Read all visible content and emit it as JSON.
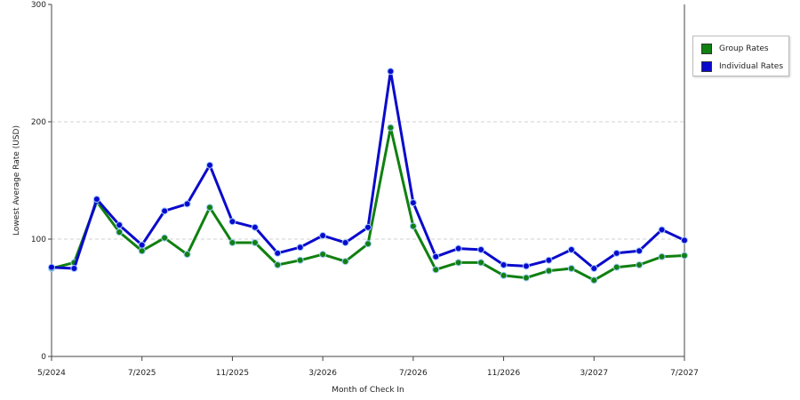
{
  "chart_data": {
    "type": "line",
    "ylabel": "Lowest Average Rate (USD)",
    "xlabel": "Month of Check In",
    "ylim": [
      0,
      300
    ],
    "yticks": [
      "0",
      "100",
      "200",
      "300"
    ],
    "grid": "horizontal dashed",
    "legend_placement": "right",
    "x": [
      "5/2024",
      "6/2024",
      "5/2025",
      "6/2025",
      "7/2025",
      "8/2025",
      "9/2025",
      "10/2025",
      "11/2025",
      "12/2025",
      "1/2026",
      "2/2026",
      "3/2026",
      "4/2026",
      "5/2026",
      "6/2026",
      "7/2026",
      "8/2026",
      "9/2026",
      "10/2026",
      "11/2026",
      "12/2026",
      "1/2027",
      "2/2027",
      "3/2027",
      "4/2027",
      "5/2027",
      "6/2027",
      "7/2027"
    ],
    "xtick_labels": [
      {
        "index": 0,
        "label": "5/2024"
      },
      {
        "index": 4,
        "label": "7/2025"
      },
      {
        "index": 8,
        "label": "11/2025"
      },
      {
        "index": 12,
        "label": "3/2026"
      },
      {
        "index": 16,
        "label": "7/2026"
      },
      {
        "index": 20,
        "label": "11/2026"
      },
      {
        "index": 24,
        "label": "3/2027"
      },
      {
        "index": 28,
        "label": "7/2027"
      }
    ],
    "series": [
      {
        "name": "Group Rates",
        "color": "#108010",
        "values": [
          75,
          80,
          132,
          106,
          90,
          101,
          87,
          127,
          97,
          97,
          78,
          82,
          87,
          81,
          96,
          195,
          111,
          74,
          80,
          80,
          69,
          67,
          73,
          75,
          65,
          76,
          78,
          85,
          86
        ]
      },
      {
        "name": "Individual Rates",
        "color": "#0a0acc",
        "values": [
          76,
          75,
          134,
          112,
          95,
          124,
          130,
          163,
          115,
          110,
          88,
          93,
          103,
          97,
          110,
          243,
          131,
          85,
          92,
          91,
          78,
          77,
          82,
          91,
          75,
          88,
          90,
          108,
          99
        ]
      }
    ]
  }
}
